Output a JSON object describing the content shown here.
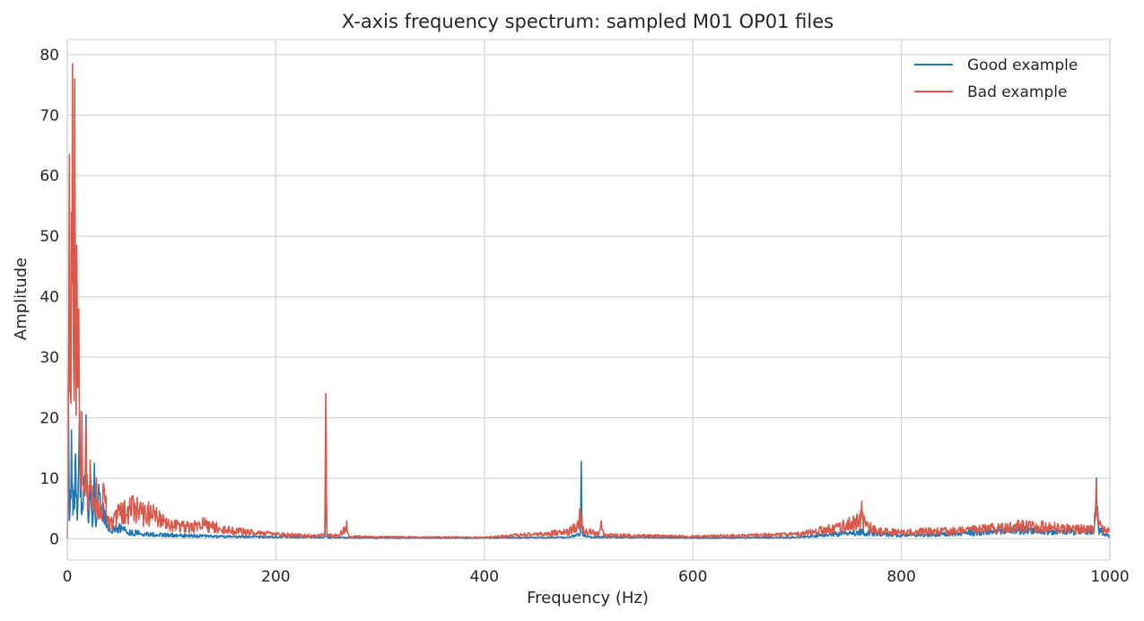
{
  "chart_data": {
    "type": "line",
    "title": "X-axis frequency spectrum: sampled M01 OP01 files",
    "xlabel": "Frequency (Hz)",
    "ylabel": "Amplitude",
    "xlim": [
      0,
      1000
    ],
    "ylim": [
      -3.5,
      82.5
    ],
    "x_ticks": [
      "0",
      "200",
      "400",
      "600",
      "800",
      "1000"
    ],
    "y_ticks": [
      "0",
      "10",
      "20",
      "30",
      "40",
      "50",
      "60",
      "70",
      "80"
    ],
    "grid": true,
    "legend_position": "top-right",
    "series": [
      {
        "name": "Good example",
        "color": "#1f77b4",
        "points": [
          [
            0,
            0
          ],
          [
            1,
            25
          ],
          [
            2,
            3
          ],
          [
            4,
            18
          ],
          [
            6,
            8
          ],
          [
            8,
            14
          ],
          [
            10,
            5
          ],
          [
            12,
            21
          ],
          [
            14,
            4
          ],
          [
            16,
            10
          ],
          [
            18,
            20.5
          ],
          [
            20,
            3
          ],
          [
            22,
            12.5
          ],
          [
            24,
            2
          ],
          [
            26,
            12.5
          ],
          [
            28,
            3
          ],
          [
            30,
            9
          ],
          [
            35,
            5
          ],
          [
            40,
            1.5
          ],
          [
            50,
            2.5
          ],
          [
            60,
            1.5
          ],
          [
            80,
            1
          ],
          [
            100,
            0.8
          ],
          [
            150,
            0.5
          ],
          [
            200,
            0.4
          ],
          [
            247,
            0.3
          ],
          [
            248,
            22
          ],
          [
            249,
            0.3
          ],
          [
            300,
            0.2
          ],
          [
            400,
            0.2
          ],
          [
            480,
            0.3
          ],
          [
            492,
            1
          ],
          [
            493,
            12.8
          ],
          [
            494,
            1
          ],
          [
            500,
            0.4
          ],
          [
            600,
            0.2
          ],
          [
            700,
            0.3
          ],
          [
            760,
            1.5
          ],
          [
            800,
            0.8
          ],
          [
            880,
            1.5
          ],
          [
            900,
            2.2
          ],
          [
            950,
            1.5
          ],
          [
            985,
            2
          ],
          [
            987,
            10
          ],
          [
            989,
            2
          ],
          [
            1000,
            0.5
          ]
        ]
      },
      {
        "name": "Bad example",
        "color": "#d9594a",
        "points": [
          [
            0,
            0
          ],
          [
            1,
            20
          ],
          [
            2,
            63.5
          ],
          [
            3,
            25
          ],
          [
            4,
            54
          ],
          [
            5,
            78.5
          ],
          [
            6,
            30
          ],
          [
            7,
            76
          ],
          [
            8,
            28
          ],
          [
            9,
            48.5
          ],
          [
            10,
            25
          ],
          [
            11,
            38
          ],
          [
            12,
            15
          ],
          [
            14,
            21
          ],
          [
            16,
            8
          ],
          [
            18,
            19
          ],
          [
            20,
            5
          ],
          [
            22,
            13
          ],
          [
            25,
            6
          ],
          [
            28,
            10
          ],
          [
            30,
            4
          ],
          [
            35,
            9
          ],
          [
            40,
            3
          ],
          [
            50,
            5.5
          ],
          [
            60,
            6.8
          ],
          [
            70,
            6
          ],
          [
            80,
            5.5
          ],
          [
            90,
            4
          ],
          [
            100,
            3
          ],
          [
            110,
            2.8
          ],
          [
            120,
            2.5
          ],
          [
            130,
            3.5
          ],
          [
            150,
            2
          ],
          [
            200,
            1
          ],
          [
            240,
            0.6
          ],
          [
            247,
            1
          ],
          [
            248,
            24
          ],
          [
            249,
            1
          ],
          [
            260,
            0.6
          ],
          [
            268,
            3
          ],
          [
            270,
            0.5
          ],
          [
            300,
            0.4
          ],
          [
            400,
            0.3
          ],
          [
            480,
            1.5
          ],
          [
            490,
            3
          ],
          [
            492,
            5
          ],
          [
            495,
            2
          ],
          [
            510,
            1
          ],
          [
            512,
            3
          ],
          [
            515,
            0.8
          ],
          [
            600,
            0.5
          ],
          [
            700,
            1
          ],
          [
            740,
            2.5
          ],
          [
            760,
            4
          ],
          [
            762,
            6.2
          ],
          [
            765,
            3
          ],
          [
            780,
            1.8
          ],
          [
            800,
            1.5
          ],
          [
            850,
            1.8
          ],
          [
            900,
            2.5
          ],
          [
            920,
            3
          ],
          [
            950,
            2.5
          ],
          [
            985,
            2
          ],
          [
            987,
            9.5
          ],
          [
            989,
            3
          ],
          [
            995,
            2
          ],
          [
            1000,
            1.5
          ]
        ]
      }
    ]
  }
}
